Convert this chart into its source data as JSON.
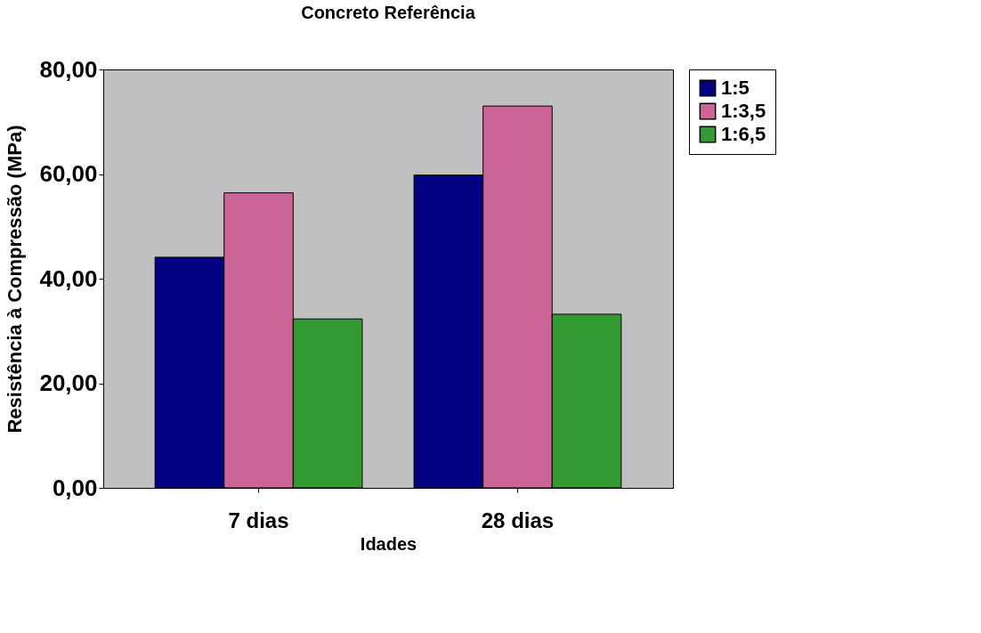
{
  "chart_data": {
    "type": "bar",
    "title": "Concreto Referência",
    "xlabel": "Idades",
    "ylabel": "Resistência à Compressão (MPa)",
    "categories": [
      "7 dias",
      "28 dias"
    ],
    "series": [
      {
        "name": "1:5",
        "color": "#000080",
        "values": [
          44.1,
          59.8
        ]
      },
      {
        "name": "1:3,5",
        "color": "#cc6699",
        "values": [
          56.4,
          73.0
        ]
      },
      {
        "name": "1:6,5",
        "color": "#339933",
        "values": [
          32.3,
          33.2
        ]
      }
    ],
    "ylim": [
      0,
      80
    ],
    "yticks": [
      {
        "value": 0,
        "label": "0,00"
      },
      {
        "value": 20,
        "label": "20,00"
      },
      {
        "value": 40,
        "label": "40,00"
      },
      {
        "value": 60,
        "label": "60,00"
      },
      {
        "value": 80,
        "label": "80,00"
      }
    ],
    "legend": "right",
    "grid": false
  }
}
